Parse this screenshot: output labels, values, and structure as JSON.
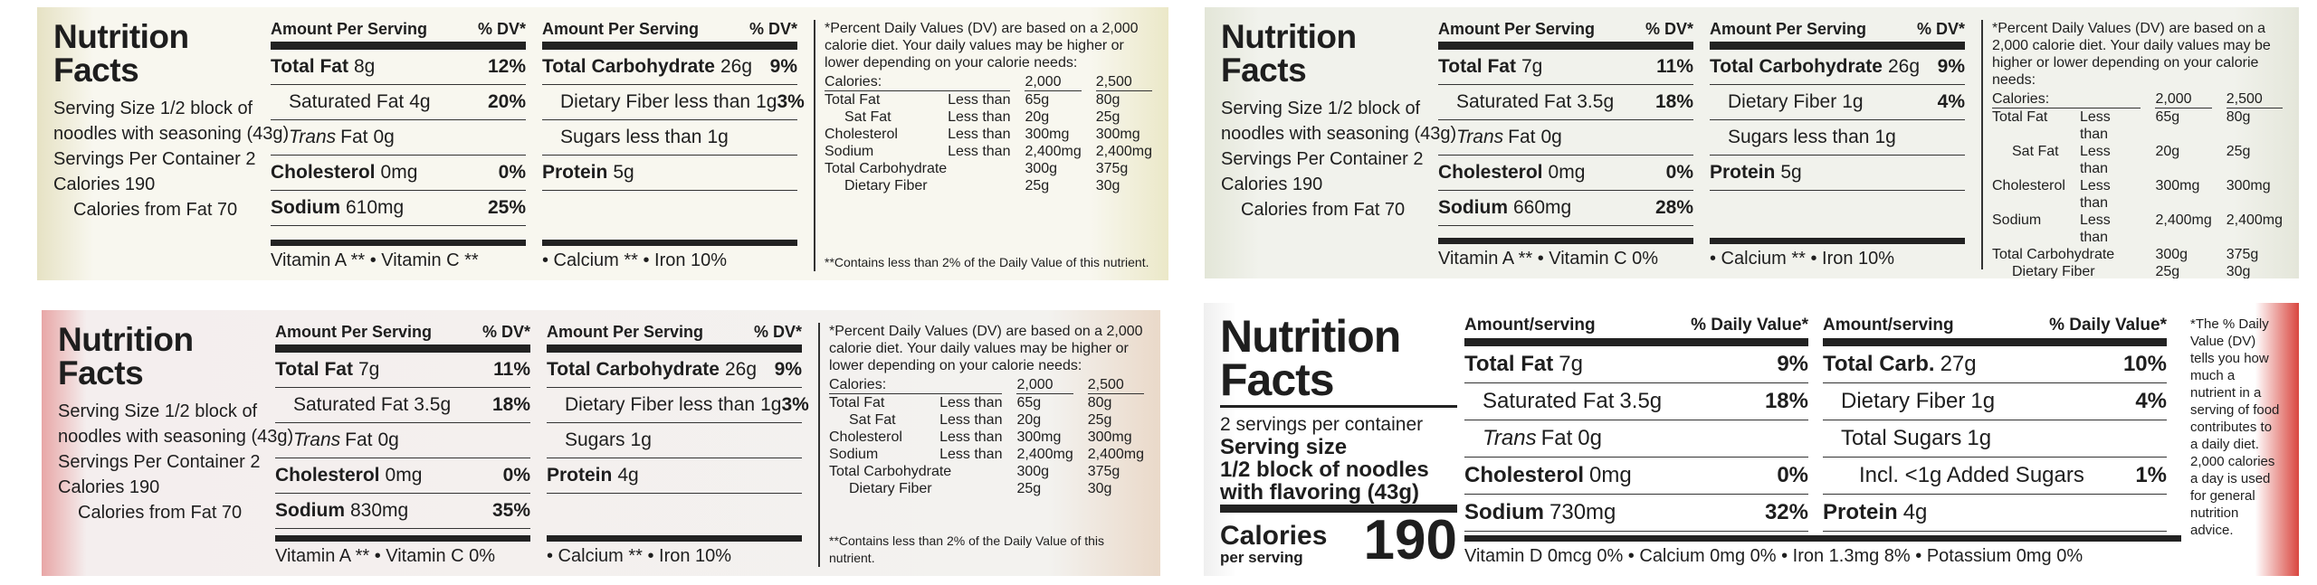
{
  "panels": [
    {
      "title": "Nutrition Facts",
      "serving": [
        "Serving Size 1/2 block of",
        "noodles with seasoning (43g)",
        "Servings Per Container 2",
        "Calories 190",
        "Calories from Fat 70"
      ],
      "columns": [
        {
          "header": [
            "Amount Per Serving",
            "% DV*"
          ],
          "rows": [
            {
              "label": "Total Fat",
              "amount": "8g",
              "dv": "12%"
            },
            {
              "label": "Saturated Fat",
              "amount": "4g",
              "dv": "20%"
            },
            {
              "label_italic": "Trans",
              "label": "Fat",
              "amount": "0g"
            },
            {
              "label": "Cholesterol",
              "amount": "0mg",
              "dv": "0%"
            },
            {
              "label": "Sodium",
              "amount": "610mg",
              "dv": "25%"
            }
          ],
          "bottom": "Vitamin A ** • Vitamin C **"
        },
        {
          "header": [
            "Amount Per Serving",
            "% DV*"
          ],
          "rows": [
            {
              "label": "Total Carbohydrate",
              "amount": "26g",
              "dv": "9%"
            },
            {
              "label": "Dietary Fiber less than",
              "amount": "1g",
              "dv": "3%"
            },
            {
              "label": "Sugars less than",
              "amount": "1g"
            },
            {
              "label": "Protein",
              "amount": "5g"
            }
          ],
          "bottom": "• Calcium ** • Iron 10%"
        }
      ],
      "footnote": {
        "intro": "*Percent Daily Values (DV) are based on a 2,000 calorie diet. Your daily values may be higher or lower depending on your calorie needs:",
        "table": [
          [
            "Calories:",
            "2,000",
            "2,500"
          ],
          [
            "Total Fat",
            "Less than",
            "65g",
            "80g"
          ],
          [
            "Sat Fat",
            "Less than",
            "20g",
            "25g"
          ],
          [
            "Cholesterol",
            "Less than",
            "300mg",
            "300mg"
          ],
          [
            "Sodium",
            "Less than",
            "2,400mg",
            "2,400mg"
          ],
          [
            "Total Carbohydrate",
            "300g",
            "375g"
          ],
          [
            "Dietary Fiber",
            "25g",
            "30g"
          ]
        ],
        "note": "**Contains less than 2% of the Daily Value of this nutrient."
      }
    },
    {
      "title": "Nutrition Facts",
      "serving": [
        "Serving Size 1/2 block of",
        "noodles with seasoning (43g)",
        "Servings Per Container 2",
        "Calories 190",
        "Calories from Fat 70"
      ],
      "columns": [
        {
          "header": [
            "Amount Per Serving",
            "% DV*"
          ],
          "rows": [
            {
              "label": "Total Fat",
              "amount": "7g",
              "dv": "11%"
            },
            {
              "label": "Saturated Fat",
              "amount": "3.5g",
              "dv": "18%"
            },
            {
              "label_italic": "Trans",
              "label": "Fat",
              "amount": "0g"
            },
            {
              "label": "Cholesterol",
              "amount": "0mg",
              "dv": "0%"
            },
            {
              "label": "Sodium",
              "amount": "660mg",
              "dv": "28%"
            }
          ],
          "bottom": "Vitamin A ** • Vitamin C 0%"
        },
        {
          "header": [
            "Amount Per Serving",
            "% DV*"
          ],
          "rows": [
            {
              "label": "Total Carbohydrate",
              "amount": "26g",
              "dv": "9%"
            },
            {
              "label": "Dietary Fiber",
              "amount": "1g",
              "dv": "4%"
            },
            {
              "label": "Sugars less than",
              "amount": "1g"
            },
            {
              "label": "Protein",
              "amount": "5g"
            }
          ],
          "bottom": "• Calcium ** • Iron 10%"
        }
      ],
      "footnote": {
        "intro": "*Percent Daily Values (DV) are based on a 2,000 calorie diet. Your daily values may be higher or lower depending on your calorie needs:",
        "table": [
          [
            "Calories:",
            "2,000",
            "2,500"
          ],
          [
            "Total Fat",
            "Less than",
            "65g",
            "80g"
          ],
          [
            "Sat Fat",
            "Less than",
            "20g",
            "25g"
          ],
          [
            "Cholesterol",
            "Less than",
            "300mg",
            "300mg"
          ],
          [
            "Sodium",
            "Less than",
            "2,400mg",
            "2,400mg"
          ],
          [
            "Total Carbohydrate",
            "300g",
            "375g"
          ],
          [
            "Dietary Fiber",
            "25g",
            "30g"
          ]
        ],
        "note": "**Contains less than 2% of the Daily Value of this nutrient."
      }
    },
    {
      "title": "Nutrition Facts",
      "serving": [
        "Serving Size 1/2 block of",
        "noodles with seasoning (43g)",
        "Servings Per Container 2",
        "Calories 190",
        "Calories from Fat 70"
      ],
      "columns": [
        {
          "header": [
            "Amount Per Serving",
            "% DV*"
          ],
          "rows": [
            {
              "label": "Total Fat",
              "amount": "7g",
              "dv": "11%"
            },
            {
              "label": "Saturated Fat",
              "amount": "3.5g",
              "dv": "18%"
            },
            {
              "label_italic": "Trans",
              "label": "Fat",
              "amount": "0g"
            },
            {
              "label": "Cholesterol",
              "amount": "0mg",
              "dv": "0%"
            },
            {
              "label": "Sodium",
              "amount": "830mg",
              "dv": "35%"
            }
          ],
          "bottom": "Vitamin A ** • Vitamin C 0%"
        },
        {
          "header": [
            "Amount Per Serving",
            "% DV*"
          ],
          "rows": [
            {
              "label": "Total Carbohydrate",
              "amount": "26g",
              "dv": "9%"
            },
            {
              "label": "Dietary Fiber less than",
              "amount": "1g",
              "dv": "3%"
            },
            {
              "label": "Sugars",
              "amount": "1g"
            },
            {
              "label": "Protein",
              "amount": "4g"
            }
          ],
          "bottom": "• Calcium ** • Iron 10%"
        }
      ],
      "footnote": {
        "intro": "*Percent Daily Values (DV) are based on a 2,000 calorie diet. Your daily values may be higher or lower depending on your calorie needs:",
        "table": [
          [
            "Calories:",
            "2,000",
            "2,500"
          ],
          [
            "Total Fat",
            "Less than",
            "65g",
            "80g"
          ],
          [
            "Sat Fat",
            "Less than",
            "20g",
            "25g"
          ],
          [
            "Cholesterol",
            "Less than",
            "300mg",
            "300mg"
          ],
          [
            "Sodium",
            "Less than",
            "2,400mg",
            "2,400mg"
          ],
          [
            "Total Carbohydrate",
            "300g",
            "375g"
          ],
          [
            "Dietary Fiber",
            "25g",
            "30g"
          ]
        ],
        "note": "**Contains less than 2% of the Daily Value of this nutrient."
      }
    },
    {
      "title": "Nutrition Facts",
      "serving": [
        "2 servings per container",
        "Serving size",
        "1/2 block of noodles",
        "with flavoring (43g)"
      ],
      "calories": {
        "label": "Calories",
        "sub": "per serving",
        "value": "190"
      },
      "columns": [
        {
          "header": [
            "Amount/serving",
            "% Daily Value*"
          ],
          "rows": [
            {
              "label": "Total Fat",
              "amount": "7g",
              "dv": "9%"
            },
            {
              "label": "Saturated Fat",
              "amount": "3.5g",
              "dv": "18%"
            },
            {
              "label_italic": "Trans",
              "label": "Fat",
              "amount": "0g"
            },
            {
              "label": "Cholesterol",
              "amount": "0mg",
              "dv": "0%"
            },
            {
              "label": "Sodium",
              "amount": "730mg",
              "dv": "32%"
            }
          ]
        },
        {
          "header": [
            "Amount/serving",
            "% Daily Value*"
          ],
          "rows": [
            {
              "label": "Total Carb.",
              "amount": "27g",
              "dv": "10%"
            },
            {
              "label": "Dietary Fiber",
              "amount": "1g",
              "dv": "4%"
            },
            {
              "label": "Total Sugars",
              "amount": "1g"
            },
            {
              "label": "Incl. <1g Added Sugars",
              "dv": "1%"
            },
            {
              "label": "Protein",
              "amount": "4g"
            }
          ]
        }
      ],
      "bottom": "Vitamin D 0mcg 0% • Calcium 0mg 0% • Iron 1.3mg 8% • Potassium 0mg 0%",
      "footnote": {
        "intro": "*The % Daily Value (DV) tells you how much a nutrient in a serving of food contributes to a daily diet. 2,000 calories a day is used for general nutrition advice."
      }
    }
  ]
}
